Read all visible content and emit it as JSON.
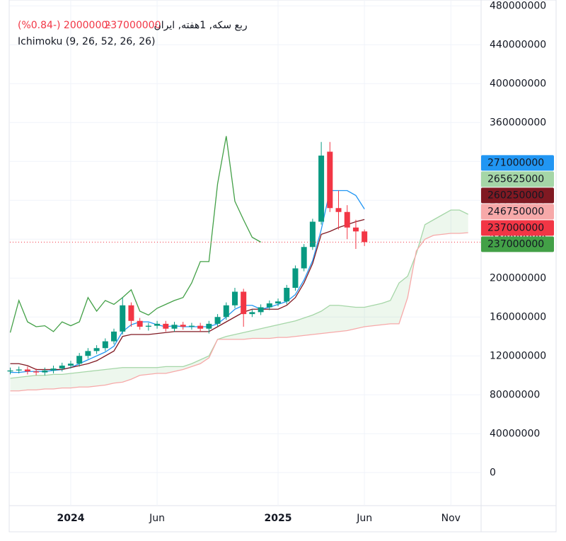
{
  "chart_data": {
    "type": "candlestick",
    "title": "ربع سکه, 1هفته, ایران",
    "change": "-2000000 (-0.84%)",
    "indicator": "Ichimoku (9, 26, 52, 26, 26)",
    "x": [
      -3.5,
      -3,
      -2.5,
      -2,
      -1.5,
      -1,
      -0.5,
      0,
      0.5,
      1,
      1.5,
      2,
      2.5,
      3,
      3.5,
      4,
      4.5,
      5,
      5.5,
      6,
      6.5,
      7,
      7.5,
      8,
      8.5,
      9,
      9.5,
      10,
      10.5,
      11,
      11.5,
      12,
      12.5,
      13,
      13.5,
      14,
      14.5,
      15,
      15.5,
      16,
      16.5,
      17,
      17.5,
      18,
      18.5,
      19,
      19.5,
      20,
      20.5,
      21,
      21.5,
      22,
      22.5,
      23
    ],
    "xlim": [
      -3.52,
      23.75
    ],
    "xticks": [
      {
        "value": 0,
        "label": "2024"
      },
      {
        "value": 5,
        "label": "Jun"
      },
      {
        "value": 12,
        "label": "2025"
      },
      {
        "value": 17,
        "label": "Jun"
      },
      {
        "value": 22,
        "label": "Nov"
      }
    ],
    "ylim": [
      -34000000,
      486000000
    ],
    "yticks": [
      0,
      40000000,
      80000000,
      120000000,
      160000000,
      200000000,
      240000000,
      280000000,
      320000000,
      360000000,
      400000000,
      440000000,
      480000000
    ],
    "grid": true,
    "up_color": "#089981",
    "down_color": "#f23645",
    "open": [
      104000000,
      105000000,
      106000000,
      104000000,
      103000000,
      105000000,
      107000000,
      110000000,
      112000000,
      120000000,
      125000000,
      128000000,
      135000000,
      145000000,
      172000000,
      156000000,
      150000000,
      151000000,
      153000000,
      148000000,
      152000000,
      150000000,
      151000000,
      148000000,
      153000000,
      160000000,
      172000000,
      186000000,
      163000000,
      165000000,
      170000000,
      174000000,
      176000000,
      190000000,
      210000000,
      232000000,
      258000000,
      330000000,
      272000000,
      268000000,
      252000000,
      248000000,
      null,
      null,
      null,
      null,
      null,
      null,
      null,
      null,
      null,
      null,
      null,
      null
    ],
    "high": [
      108000000,
      109000000,
      109000000,
      107000000,
      108000000,
      110000000,
      113000000,
      115000000,
      123000000,
      128000000,
      131000000,
      138000000,
      148000000,
      180000000,
      175000000,
      159000000,
      154000000,
      156000000,
      156000000,
      155000000,
      155000000,
      154000000,
      154000000,
      156000000,
      163000000,
      175000000,
      190000000,
      189000000,
      168000000,
      173000000,
      177000000,
      179000000,
      193000000,
      213000000,
      235000000,
      261000000,
      340000000,
      340000000,
      290000000,
      275000000,
      260000000,
      250000000,
      null,
      null,
      null,
      null,
      null,
      null,
      null,
      null,
      null,
      null,
      null,
      null
    ],
    "low": [
      101000000,
      102000000,
      101000000,
      100000000,
      100000000,
      102000000,
      104000000,
      107000000,
      109000000,
      117000000,
      122000000,
      125000000,
      132000000,
      142000000,
      150000000,
      147000000,
      146000000,
      148000000,
      145000000,
      145000000,
      147000000,
      147000000,
      145000000,
      143000000,
      150000000,
      157000000,
      169000000,
      150000000,
      160000000,
      162000000,
      167000000,
      171000000,
      173000000,
      187000000,
      207000000,
      229000000,
      255000000,
      268000000,
      250000000,
      240000000,
      230000000,
      233000000,
      null,
      null,
      null,
      null,
      null,
      null,
      null,
      null,
      null,
      null,
      null,
      null
    ],
    "close": [
      105000000,
      106000000,
      104000000,
      103000000,
      105000000,
      107000000,
      110000000,
      112000000,
      120000000,
      125000000,
      128000000,
      135000000,
      145000000,
      172000000,
      156000000,
      150000000,
      151000000,
      153000000,
      148000000,
      152000000,
      150000000,
      151000000,
      148000000,
      153000000,
      160000000,
      172000000,
      186000000,
      163000000,
      165000000,
      170000000,
      174000000,
      176000000,
      190000000,
      210000000,
      232000000,
      258000000,
      326000000,
      272000000,
      268000000,
      252000000,
      248000000,
      237000000,
      null,
      null,
      null,
      null,
      null,
      null,
      null,
      null,
      null,
      null,
      null,
      null
    ],
    "series": [
      {
        "color": "#2196f3",
        "values": [
          103000000,
          103000000,
          104000000,
          104000000,
          104000000,
          105000000,
          106000000,
          108000000,
          112000000,
          116000000,
          120000000,
          124000000,
          130000000,
          145000000,
          152000000,
          155000000,
          155000000,
          152000000,
          150000000,
          151000000,
          150000000,
          150000000,
          150000000,
          150000000,
          153000000,
          160000000,
          168000000,
          172000000,
          172000000,
          168000000,
          170000000,
          173000000,
          176000000,
          183000000,
          198000000,
          218000000,
          250000000,
          290000000,
          290000000,
          290000000,
          285000000,
          271000000,
          null,
          null,
          null,
          null,
          null,
          null,
          null,
          null,
          null,
          null,
          null,
          null
        ]
      },
      {
        "color": "#801922",
        "values": [
          112000000,
          112000000,
          110000000,
          106000000,
          106000000,
          106000000,
          106000000,
          108000000,
          110000000,
          112000000,
          115000000,
          120000000,
          125000000,
          140000000,
          142000000,
          142000000,
          142000000,
          143000000,
          144000000,
          145000000,
          145000000,
          145000000,
          145000000,
          145000000,
          150000000,
          155000000,
          160000000,
          165000000,
          168000000,
          168000000,
          168000000,
          168000000,
          172000000,
          180000000,
          195000000,
          215000000,
          245000000,
          248000000,
          252000000,
          255000000,
          258000000,
          260250000,
          null,
          null,
          null,
          null,
          null,
          null,
          null,
          null,
          null,
          null,
          null,
          null
        ]
      },
      {
        "color": "#a5d6a7",
        "values": [
          97000000,
          98000000,
          99000000,
          100000000,
          100000000,
          101000000,
          101000000,
          102000000,
          103000000,
          104000000,
          105000000,
          106000000,
          107000000,
          108000000,
          108000000,
          108000000,
          108000000,
          108000000,
          109000000,
          109000000,
          109000000,
          112000000,
          116000000,
          120000000,
          137000000,
          140000000,
          142000000,
          144000000,
          146000000,
          148000000,
          150000000,
          152000000,
          154000000,
          156000000,
          159000000,
          162000000,
          166000000,
          172000000,
          172000000,
          171000000,
          170000000,
          170000000,
          172000000,
          174000000,
          177000000,
          195000000,
          202000000,
          225000000,
          255000000,
          260000000,
          265000000,
          270000000,
          270000000,
          265625000
        ]
      },
      {
        "color": "#f7a9a9",
        "values": [
          84000000,
          84000000,
          85000000,
          85000000,
          86000000,
          86000000,
          87000000,
          87000000,
          88000000,
          88000000,
          89000000,
          90000000,
          92000000,
          93000000,
          96000000,
          100000000,
          101000000,
          102000000,
          102000000,
          104000000,
          106000000,
          109000000,
          112000000,
          118000000,
          137000000,
          137000000,
          137000000,
          137000000,
          138000000,
          138000000,
          138000000,
          139000000,
          139000000,
          140000000,
          141000000,
          142000000,
          143000000,
          144000000,
          145000000,
          146000000,
          148000000,
          150000000,
          151000000,
          152000000,
          153000000,
          153000000,
          180000000,
          228000000,
          240000000,
          244000000,
          245000000,
          246000000,
          246000000,
          246750000
        ]
      },
      {
        "color": "#43a047",
        "values": [
          144000000,
          177000000,
          155000000,
          150000000,
          151000000,
          145000000,
          155000000,
          151000000,
          155000000,
          180000000,
          166000000,
          177000000,
          173000000,
          180000000,
          188000000,
          166000000,
          162000000,
          169000000,
          173000000,
          177000000,
          180000000,
          195000000,
          217000000,
          217000000,
          297000000,
          346000000,
          279000000,
          260000000,
          242000000,
          237000000,
          null,
          null,
          null,
          null,
          null,
          null,
          null,
          null,
          null,
          null,
          null,
          null,
          null,
          null,
          null,
          null,
          null,
          null,
          null,
          null,
          null,
          null,
          null,
          null
        ]
      }
    ]
  }
}
